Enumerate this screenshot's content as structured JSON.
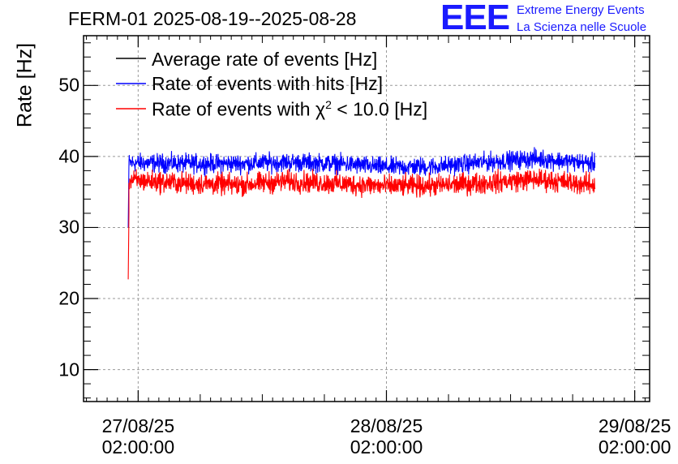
{
  "title": "FERM-01 2025-08-19--2025-08-28",
  "logo": {
    "mark": "EEE",
    "line1": "Extreme Energy Events",
    "line2": "La Scienza nelle Scuole"
  },
  "colors": {
    "average": "#000000",
    "hits": "#0000ff",
    "chi2": "#ff0000"
  },
  "chart_data": {
    "type": "line",
    "title": "FERM-01 2025-08-19--2025-08-28",
    "ylabel": "Rate [Hz]",
    "xlabel": "",
    "ylim": [
      5.5,
      57
    ],
    "yticks": [
      10,
      20,
      30,
      40,
      50
    ],
    "ytick_labels": [
      "10",
      "20",
      "30",
      "40",
      "50"
    ],
    "x_unit": "days since 27/08/25 02:00:00",
    "xlim": [
      -0.22,
      2.06
    ],
    "xticks": [
      {
        "x": 0,
        "date": "27/08/25",
        "time": "02:00:00"
      },
      {
        "x": 1,
        "date": "28/08/25",
        "time": "02:00:00"
      },
      {
        "x": 2,
        "date": "29/08/25",
        "time": "02:00:00"
      }
    ],
    "grid": true,
    "legend_position": "top-left",
    "legend": [
      {
        "key": "average",
        "label": "Average rate of events [Hz]"
      },
      {
        "key": "hits",
        "label": "Rate of events with hits [Hz]"
      },
      {
        "key": "chi2",
        "label_prefix": "Rate of events with ",
        "chi_symbol": "χ",
        "chi_exp": "2",
        "label_suffix": " < 10.0 [Hz]"
      }
    ],
    "series": [
      {
        "name": "Rate of events with hits [Hz]",
        "key": "hits",
        "x_start": -0.04,
        "x_end": 1.84,
        "startup": [
          {
            "x": -0.04,
            "y": 30.0
          }
        ],
        "x": [
          0.0,
          0.2,
          0.4,
          0.6,
          0.8,
          1.0,
          1.2,
          1.4,
          1.6,
          1.84
        ],
        "mean": [
          39.1,
          39.0,
          39.0,
          39.2,
          39.0,
          38.5,
          38.6,
          39.2,
          39.7,
          39.0
        ],
        "spread": 1.3
      },
      {
        "name": "Rate of events with χ2 < 10.0 [Hz]",
        "key": "chi2",
        "x_start": -0.04,
        "x_end": 1.84,
        "startup": [
          {
            "x": -0.04,
            "y": 22.7
          },
          {
            "x": -0.037,
            "y": 32.2
          }
        ],
        "x": [
          0.0,
          0.2,
          0.4,
          0.6,
          0.8,
          1.0,
          1.2,
          1.4,
          1.6,
          1.84
        ],
        "mean": [
          36.6,
          36.2,
          36.0,
          36.5,
          36.2,
          35.8,
          35.9,
          36.3,
          36.8,
          36.0
        ],
        "spread": 1.5
      }
    ]
  }
}
